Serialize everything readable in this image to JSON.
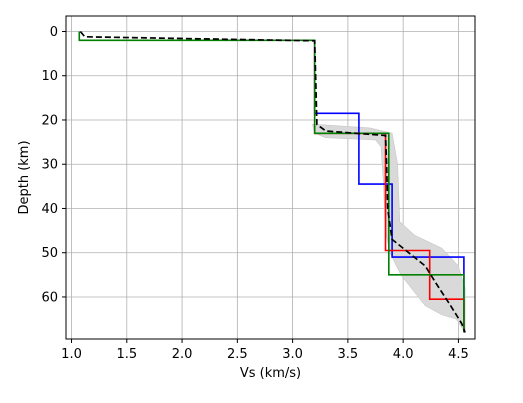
{
  "chart_data": {
    "type": "line",
    "title": "",
    "xlabel": "Vs (km/s)",
    "ylabel": "Depth (km)",
    "xlim": [
      0.95,
      4.65
    ],
    "ylim": [
      69.5,
      -3.5
    ],
    "y_inverted": true,
    "grid": true,
    "legend": "none",
    "xticks": [
      1.0,
      1.5,
      2.0,
      2.5,
      3.0,
      3.5,
      4.0,
      4.5
    ],
    "xtick_labels": [
      "1.0",
      "1.5",
      "2.0",
      "2.5",
      "3.0",
      "3.5",
      "4.0",
      "4.5"
    ],
    "yticks": [
      0,
      10,
      20,
      30,
      40,
      50,
      60
    ],
    "ytick_labels": [
      "0",
      "10",
      "20",
      "30",
      "40",
      "50",
      "60"
    ],
    "uncertainty_band": {
      "color": "#d9d9d9",
      "left": [
        [
          3.18,
          21
        ],
        [
          3.2,
          23
        ],
        [
          3.3,
          24
        ],
        [
          3.75,
          24.5
        ],
        [
          3.8,
          26
        ],
        [
          3.82,
          34
        ],
        [
          3.84,
          45
        ],
        [
          3.88,
          50
        ],
        [
          3.98,
          55
        ],
        [
          4.2,
          62
        ],
        [
          4.35,
          64
        ],
        [
          4.48,
          65
        ],
        [
          4.56,
          68
        ]
      ],
      "right": [
        [
          3.22,
          21
        ],
        [
          3.7,
          21.8
        ],
        [
          3.9,
          23
        ],
        [
          3.95,
          30
        ],
        [
          3.97,
          43
        ],
        [
          4.1,
          46
        ],
        [
          4.35,
          49
        ],
        [
          4.5,
          53
        ],
        [
          4.56,
          58
        ],
        [
          4.56,
          68
        ]
      ]
    },
    "series": [
      {
        "color": "#0000ff",
        "points": [
          [
            3.2,
            2
          ],
          [
            3.2,
            18.5
          ],
          [
            3.6,
            18.5
          ],
          [
            3.6,
            34.5
          ],
          [
            3.9,
            34.5
          ],
          [
            3.9,
            51
          ],
          [
            4.55,
            51
          ],
          [
            4.55,
            68
          ]
        ]
      },
      {
        "color": "#ff0000",
        "points": [
          [
            3.2,
            2
          ],
          [
            3.2,
            23
          ],
          [
            3.84,
            23
          ],
          [
            3.84,
            49.5
          ],
          [
            4.24,
            49.5
          ],
          [
            4.24,
            60.5
          ],
          [
            4.55,
            60.5
          ],
          [
            4.55,
            68
          ]
        ]
      },
      {
        "color": "#008000",
        "points": [
          [
            1.07,
            0
          ],
          [
            1.07,
            2
          ],
          [
            3.2,
            2
          ],
          [
            3.2,
            23
          ],
          [
            3.87,
            23
          ],
          [
            3.87,
            55
          ],
          [
            4.55,
            55
          ],
          [
            4.55,
            68
          ]
        ]
      },
      {
        "color": "#000000",
        "dashed": true,
        "points": [
          [
            1.08,
            0
          ],
          [
            1.12,
            1.2
          ],
          [
            3.2,
            2.1
          ],
          [
            3.22,
            21
          ],
          [
            3.3,
            22.5
          ],
          [
            3.84,
            23.5
          ],
          [
            3.85,
            30
          ],
          [
            3.86,
            40
          ],
          [
            3.9,
            47
          ],
          [
            4.05,
            50
          ],
          [
            4.2,
            53
          ],
          [
            4.3,
            57
          ],
          [
            4.43,
            62
          ],
          [
            4.53,
            66
          ],
          [
            4.56,
            68
          ]
        ]
      }
    ]
  }
}
